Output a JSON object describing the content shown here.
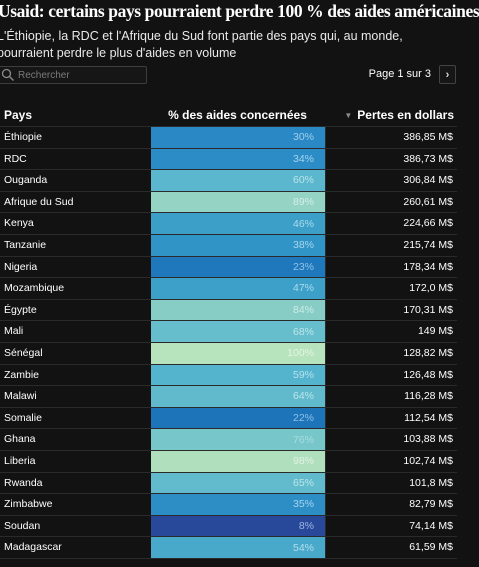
{
  "header": {
    "title": "Usaid: certains pays pourraient perdre 100 % des aides américaines",
    "subtitle": "L'Éthiopie, la RDC et l'Afrique du Sud font partie des pays qui, au monde, pourraient perdre le plus d'aides en volume"
  },
  "search": {
    "placeholder": "Rechercher"
  },
  "pagination": {
    "label": "Page 1 sur 3",
    "next_icon": "chevron-right-icon"
  },
  "table": {
    "columns": {
      "country": "Pays",
      "percent": "% des aides concernées",
      "loss": "Pertes en dollars"
    },
    "rows": [
      {
        "country": "Éthiopie",
        "percent": "30%",
        "loss": "386,85 M$",
        "color": "#2a88c4",
        "text_color": "#9fd0ee"
      },
      {
        "country": "RDC",
        "percent": "34%",
        "loss": "386,73 M$",
        "color": "#2b8cc6",
        "text_color": "#a5d4ef"
      },
      {
        "country": "Ouganda",
        "percent": "60%",
        "loss": "306,84 M$",
        "color": "#5bb7cd",
        "text_color": "#b8e4ec"
      },
      {
        "country": "Afrique du Sud",
        "percent": "89%",
        "loss": "260,61 M$",
        "color": "#95d3c4",
        "text_color": "#d3efe9"
      },
      {
        "country": "Kenya",
        "percent": "46%",
        "loss": "224,66 M$",
        "color": "#3c9fc8",
        "text_color": "#acdcee"
      },
      {
        "country": "Tanzanie",
        "percent": "38%",
        "loss": "215,74 M$",
        "color": "#3194c6",
        "text_color": "#a8d6ef"
      },
      {
        "country": "Nigeria",
        "percent": "23%",
        "loss": "178,34 M$",
        "color": "#1f78bb",
        "text_color": "#8ec4ea"
      },
      {
        "country": "Mozambique",
        "percent": "47%",
        "loss": "172,0 M$",
        "color": "#3da0c8",
        "text_color": "#acdcee"
      },
      {
        "country": "Égypte",
        "percent": "84%",
        "loss": "170,31 M$",
        "color": "#87cdc6",
        "text_color": "#cdece8"
      },
      {
        "country": "Mali",
        "percent": "68%",
        "loss": "149 M$",
        "color": "#66bdcb",
        "text_color": "#bfe6ec"
      },
      {
        "country": "Sénégal",
        "percent": "100%",
        "loss": "128,82 M$",
        "color": "#b7e3bd",
        "text_color": "#e3f5e3"
      },
      {
        "country": "Zambie",
        "percent": "59%",
        "loss": "126,48 M$",
        "color": "#55b4cd",
        "text_color": "#b6e2ec"
      },
      {
        "country": "Malawi",
        "percent": "64%",
        "loss": "116,28 M$",
        "color": "#60bacc",
        "text_color": "#bbe5ec"
      },
      {
        "country": "Somalie",
        "percent": "22%",
        "loss": "112,54 M$",
        "color": "#1d74b9",
        "text_color": "#8cc1e9"
      },
      {
        "country": "Ghana",
        "percent": "76%",
        "loss": "103,88 M$",
        "color": "#77c6c9",
        "text_color": "#a6dde0"
      },
      {
        "country": "Liberia",
        "percent": "98%",
        "loss": "102,74 M$",
        "color": "#b0dfbe",
        "text_color": "#e0f3e2"
      },
      {
        "country": "Rwanda",
        "percent": "65%",
        "loss": "101,8 M$",
        "color": "#62bbcc",
        "text_color": "#bde5ec"
      },
      {
        "country": "Zimbabwe",
        "percent": "35%",
        "loss": "82,79 M$",
        "color": "#2d8ec6",
        "text_color": "#a6d4ef"
      },
      {
        "country": "Soudan",
        "percent": "8%",
        "loss": "74,14 M$",
        "color": "#28489a",
        "text_color": "#9fb5e6"
      },
      {
        "country": "Madagascar",
        "percent": "54%",
        "loss": "61,59 M$",
        "color": "#48a9ca",
        "text_color": "#b1dfed"
      }
    ]
  }
}
